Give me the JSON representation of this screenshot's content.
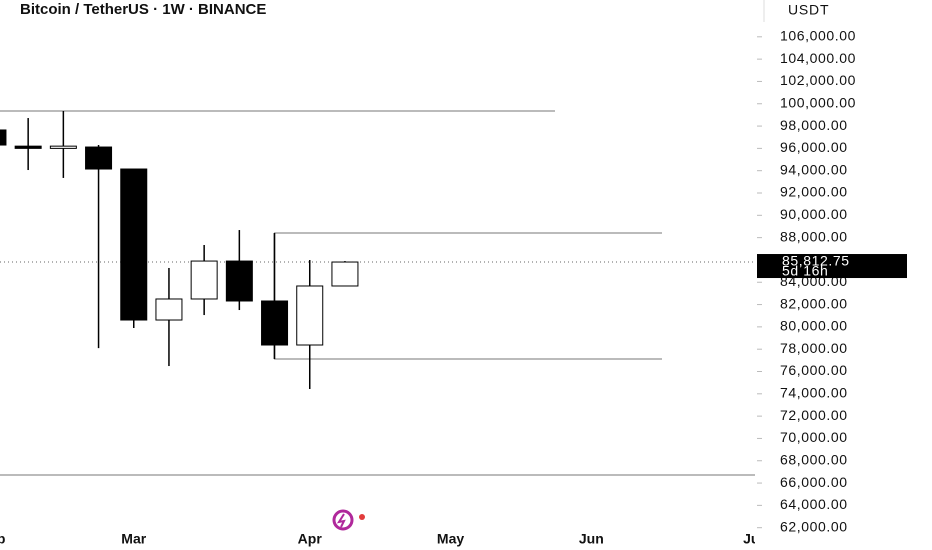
{
  "chart_data": {
    "type": "candlestick",
    "title": "Bitcoin / TetherUS · 1W · BINANCE",
    "axis_unit": "USDT",
    "categories": [
      null,
      null,
      null,
      null,
      null,
      null,
      null,
      null,
      null,
      null,
      null
    ],
    "open": [
      97650,
      96200,
      96000,
      96120,
      94150,
      80615,
      82500,
      85900,
      82320,
      78375,
      83665
    ],
    "high": [
      97830,
      98720,
      99350,
      96300,
      94150,
      85280,
      87340,
      88680,
      88410,
      86000,
      85900
    ],
    "low": [
      96300,
      94060,
      93350,
      78100,
      79900,
      76490,
      81060,
      81510,
      77120,
      74430,
      83660
    ],
    "close": [
      96300,
      96000,
      96200,
      94150,
      80615,
      82500,
      85900,
      82320,
      78375,
      83665,
      85812.75
    ],
    "up_color": "#ffffff",
    "down_color": "#000000",
    "levels": [
      99350,
      88410,
      77120,
      66720
    ],
    "last_price": {
      "value": 85812.75,
      "label": "85,812.75"
    },
    "countdown": "5d 16h",
    "xlim": [
      0.2,
      21.65
    ],
    "xticks": [
      {
        "value": 0,
        "label": "Feb"
      },
      {
        "value": 4,
        "label": "Mar"
      },
      {
        "value": 9,
        "label": "Apr"
      },
      {
        "value": 13,
        "label": "May"
      },
      {
        "value": 17,
        "label": "Jun"
      },
      {
        "value": 21.6,
        "label": "Jul"
      }
    ],
    "ylim": [
      60000,
      109300
    ],
    "yticks": [
      {
        "value": 62000,
        "label": "62,000.00"
      },
      {
        "value": 64000,
        "label": "64,000.00"
      },
      {
        "value": 66000,
        "label": "66,000.00"
      },
      {
        "value": 68000,
        "label": "68,000.00"
      },
      {
        "value": 70000,
        "label": "70,000.00"
      },
      {
        "value": 72000,
        "label": "72,000.00"
      },
      {
        "value": 74000,
        "label": "74,000.00"
      },
      {
        "value": 76000,
        "label": "76,000.00"
      },
      {
        "value": 78000,
        "label": "78,000.00"
      },
      {
        "value": 80000,
        "label": "80,000.00"
      },
      {
        "value": 82000,
        "label": "82,000.00"
      },
      {
        "value": 84000,
        "label": "84,000.00"
      },
      {
        "value": 86000,
        "label": "86,000.00"
      },
      {
        "value": 88000,
        "label": "88,000.00"
      },
      {
        "value": 90000,
        "label": "90,000.00"
      },
      {
        "value": 92000,
        "label": "92,000.00"
      },
      {
        "value": 94000,
        "label": "94,000.00"
      },
      {
        "value": 96000,
        "label": "96,000.00"
      },
      {
        "value": 98000,
        "label": "98,000.00"
      },
      {
        "value": 100000,
        "label": "100,000.00"
      },
      {
        "value": 102000,
        "label": "102,000.00"
      },
      {
        "value": 104000,
        "label": "104,000.00"
      },
      {
        "value": 106000,
        "label": "106,000.00"
      }
    ]
  }
}
